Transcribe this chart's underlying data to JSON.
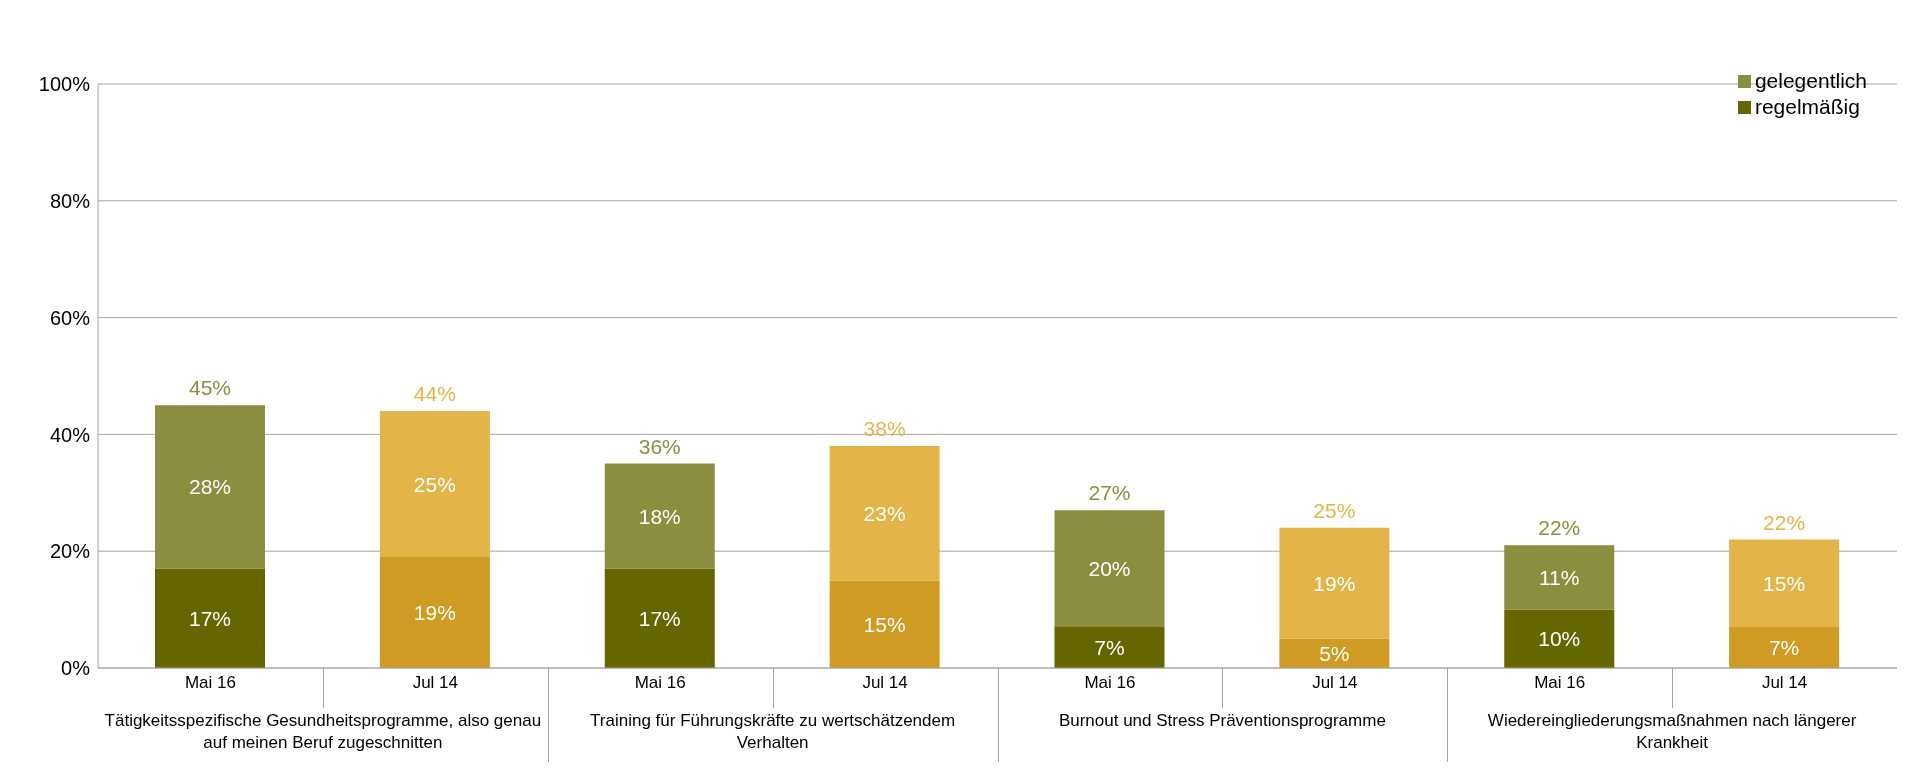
{
  "chart_data": {
    "type": "bar",
    "stacked": true,
    "categories": [
      "Mai 16",
      "Jul 14",
      "Mai 16",
      "Jul 14",
      "Mai 16",
      "Jul 14",
      "Mai 16",
      "Jul 14"
    ],
    "series": [
      {
        "name": "regelmäßig",
        "color": "#666600",
        "colors": [
          "#666600",
          "#cf9b22",
          "#666600",
          "#cf9b22",
          "#666600",
          "#cf9b22",
          "#666600",
          "#cf9b22"
        ],
        "values": [
          17,
          19,
          17,
          15,
          7,
          5,
          10,
          7
        ],
        "value_labels": [
          "17%",
          "19%",
          "17%",
          "15%",
          "7%",
          "5%",
          "10%",
          "7%"
        ]
      },
      {
        "name": "gelegentlich",
        "color": "#8b8e3f",
        "colors": [
          "#8b8e3f",
          "#e3b549",
          "#8b8e3f",
          "#e3b549",
          "#8b8e3f",
          "#e3b549",
          "#8b8e3f",
          "#e3b549"
        ],
        "values": [
          28,
          25,
          18,
          23,
          20,
          19,
          11,
          15
        ],
        "value_labels": [
          "28%",
          "25%",
          "18%",
          "23%",
          "20%",
          "19%",
          "11%",
          "15%"
        ]
      }
    ],
    "totals": [
      "45%",
      "44%",
      "36%",
      "38%",
      "27%",
      "25%",
      "22%",
      "22%"
    ],
    "ylim": [
      0,
      100
    ],
    "yticks": [
      {
        "value": 0,
        "label": "0%"
      },
      {
        "value": 20,
        "label": "20%"
      },
      {
        "value": 40,
        "label": "40%"
      },
      {
        "value": 60,
        "label": "60%"
      },
      {
        "value": 80,
        "label": "80%"
      },
      {
        "value": 100,
        "label": "100%"
      }
    ],
    "grid": "y",
    "legend": "top right",
    "annotations": [
      "Tätigkeitsspezifische Gesundheitsprogramme, also genau auf meinen Beruf zugeschnitten",
      "Training für Führungskräfte zu wertschätzendem Verhalten",
      "Burnout und Stress Präventionsprogramme",
      "Wiedereingliederungsmaßnahmen nach längerer Krankheit"
    ]
  }
}
